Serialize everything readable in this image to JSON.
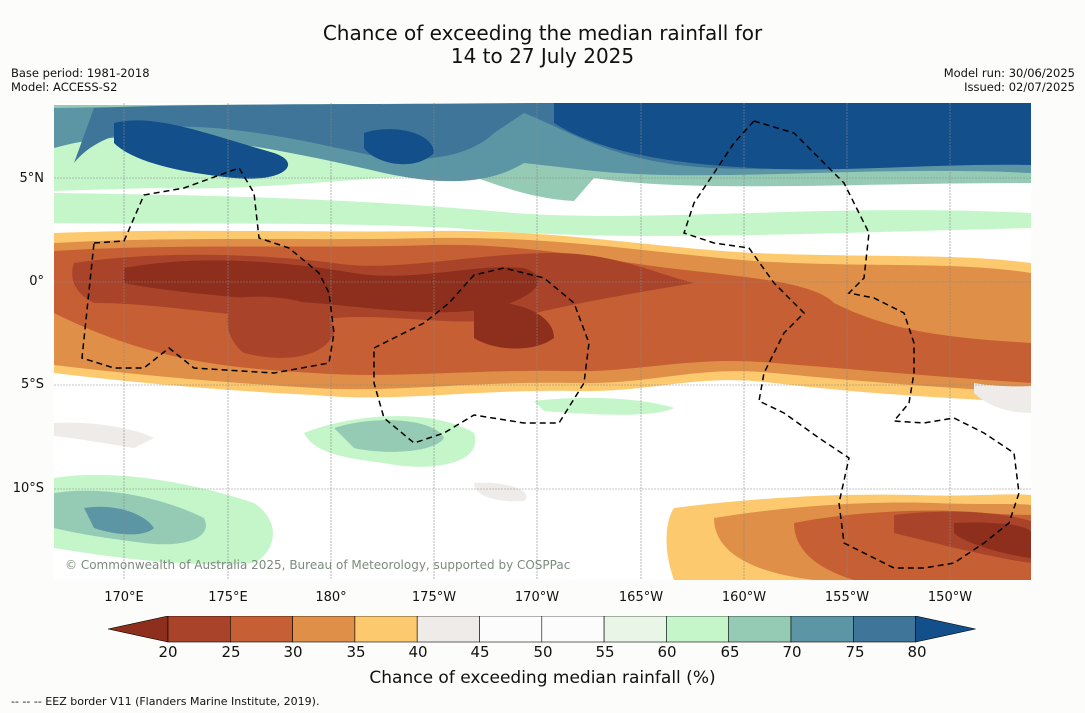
{
  "title_line1": "Chance of exceeding the median rainfall for",
  "title_line2": "14 to 27 July 2025",
  "base_period": "Base period: 1981-2018",
  "model": "Model: ACCESS-S2",
  "model_run": "Model run: 30/06/2025",
  "issued": "Issued: 02/07/2025",
  "lat_labels": [
    "5°N",
    "0°",
    "5°S",
    "10°S"
  ],
  "lon_labels": [
    "170°E",
    "175°E",
    "180°",
    "175°W",
    "170°W",
    "165°W",
    "160°W",
    "155°W",
    "150°W"
  ],
  "copyright": "© Commonwealth of Australia 2025, Bureau of Meteorology, supported by COSPPac",
  "colorbar": {
    "ticks": [
      "20",
      "25",
      "30",
      "35",
      "40",
      "45",
      "50",
      "55",
      "60",
      "65",
      "70",
      "75",
      "80"
    ],
    "label": "Chance of exceeding median rainfall (%)",
    "colors": [
      "#8e2f1d",
      "#a9442a",
      "#c65f33",
      "#df8f47",
      "#fdc96f",
      "#efebe8",
      "#fcfcfc",
      "#fcfcfc",
      "#e9f5e6",
      "#c5f6ca",
      "#95cbb5",
      "#5c96a5",
      "#3f7598",
      "#134f8b"
    ]
  },
  "footnote": "--  --  -- EEZ border V11 (Flanders Marine Institute, 2019)."
}
